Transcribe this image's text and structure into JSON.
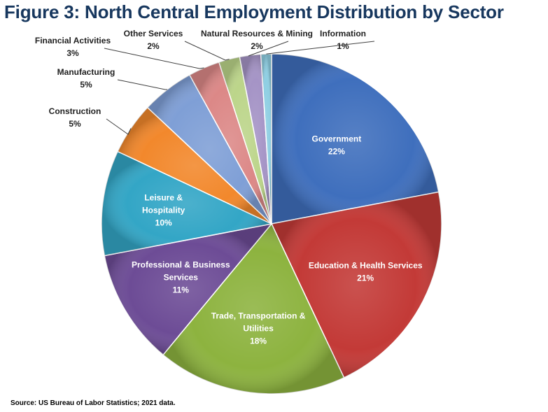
{
  "title": "Figure 3: North Central Employment Distribution by Sector",
  "source_note": "Source: US Bureau of Labor Statistics; 2021 data.",
  "chart_data": {
    "type": "pie",
    "title": "Figure 3: North Central Employment Distribution by Sector",
    "slices": [
      {
        "name": "Government",
        "label_lines": [
          "Government"
        ],
        "value": 22,
        "pct_label": "22%",
        "color": "#3f6fbd",
        "label_pos": "inside"
      },
      {
        "name": "Education & Health Services",
        "label_lines": [
          "Education & Health Services"
        ],
        "value": 21,
        "pct_label": "21%",
        "color": "#c33a37",
        "label_pos": "inside"
      },
      {
        "name": "Trade, Transportation & Utilities",
        "label_lines": [
          "Trade, Transportation &",
          "Utilities"
        ],
        "value": 18,
        "pct_label": "18%",
        "color": "#8db33f",
        "label_pos": "inside"
      },
      {
        "name": "Professional & Business Services",
        "label_lines": [
          "Professional & Business",
          "Services"
        ],
        "value": 11,
        "pct_label": "11%",
        "color": "#6d4c96",
        "label_pos": "inside"
      },
      {
        "name": "Leisure & Hospitality",
        "label_lines": [
          "Leisure &",
          "Hospitality"
        ],
        "value": 10,
        "pct_label": "10%",
        "color": "#33a6c6",
        "label_pos": "inside"
      },
      {
        "name": "Construction",
        "label_lines": [
          "Construction"
        ],
        "value": 5,
        "pct_label": "5%",
        "color": "#f2882c",
        "label_pos": "outside"
      },
      {
        "name": "Manufacturing",
        "label_lines": [
          "Manufacturing"
        ],
        "value": 5,
        "pct_label": "5%",
        "color": "#7f9fd6",
        "label_pos": "outside"
      },
      {
        "name": "Financial Activities",
        "label_lines": [
          "Financial Activities"
        ],
        "value": 3,
        "pct_label": "3%",
        "color": "#dc8887",
        "label_pos": "outside"
      },
      {
        "name": "Other Services",
        "label_lines": [
          "Other Services"
        ],
        "value": 2,
        "pct_label": "2%",
        "color": "#bcd58a",
        "label_pos": "outside"
      },
      {
        "name": "Natural Resources & Mining",
        "label_lines": [
          "Natural Resources & Mining"
        ],
        "value": 2,
        "pct_label": "2%",
        "color": "#a594c6",
        "label_pos": "outside"
      },
      {
        "name": "Information",
        "label_lines": [
          "Information"
        ],
        "value": 1,
        "pct_label": "1%",
        "color": "#8fcfe3",
        "label_pos": "outside"
      }
    ],
    "start": "12 o'clock",
    "direction": "clockwise",
    "legend": "none"
  }
}
